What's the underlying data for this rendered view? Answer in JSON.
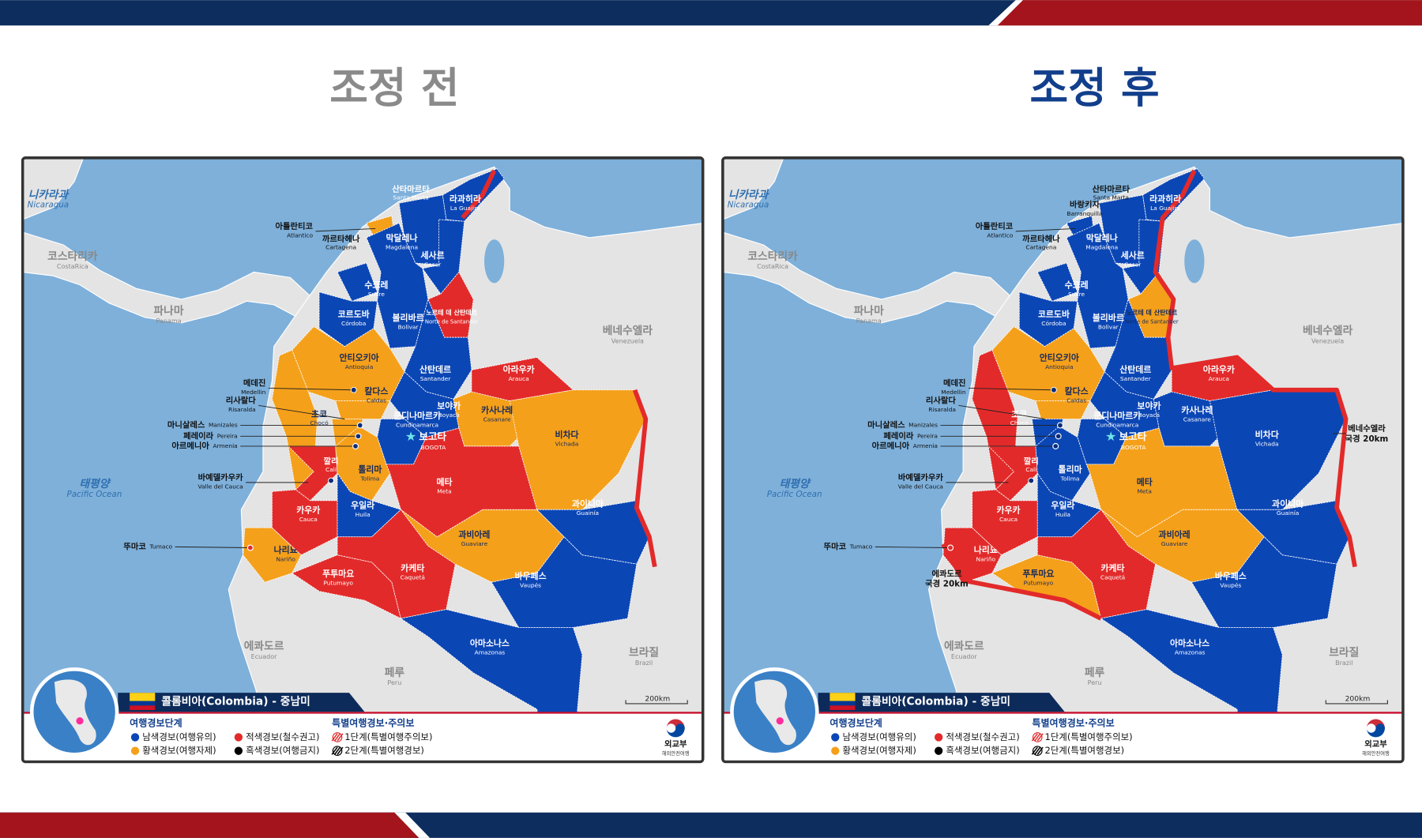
{
  "maps": [
    {
      "title": "조정 전",
      "region_colors": [
        "#0b46b5",
        "#0b46b5",
        "#f5a01a",
        "#0b46b5",
        "#0b46b5",
        "#0b46b5",
        "#0b46b5",
        "#e32a2a",
        "#0b46b5",
        "#e32a2a",
        "#f5a01a",
        "#f5a01a",
        "#f5a01a",
        "#f5a01a",
        "#0b46b5",
        "#0b46b5",
        "#f5a01a",
        "#f5a01a",
        "#e32a2a",
        "#f5a01a",
        "#e32a2a",
        "#e32a2a",
        "#0b46b5",
        "#0b46b5",
        "#f5a01a",
        "#f5a01a",
        "#e32a2a",
        "#e32a2a",
        "#0b46b5",
        "#0b46b5"
      ]
    },
    {
      "title": "조정 후",
      "region_colors": [
        "#0b46b5",
        "#0b46b5",
        "#0b46b5",
        "#0b46b5",
        "#0b46b5",
        "#0b46b5",
        "#0b46b5",
        "#f5a01a",
        "#0b46b5",
        "#e32a2a",
        "#f5a01a",
        "#e32a2a",
        "#f5a01a",
        "#0b46b5",
        "#0b46b5",
        "#0b46b5",
        "#0b46b5",
        "#0b46b5",
        "#e32a2a",
        "#0b46b5",
        "#f5a01a",
        "#e32a2a",
        "#0b46b5",
        "#0b46b5",
        "#f5a01a",
        "#e32a2a",
        "#f5a01a",
        "#e32a2a",
        "#0b46b5",
        "#0b46b5"
      ],
      "extra_labels": [
        {
          "ko": "바랑키자",
          "en": "Barranquilla"
        }
      ],
      "border_notes": [
        [
          "베네수엘라",
          "국경 20km"
        ],
        [
          "에콰도르",
          "국경 20km"
        ]
      ]
    }
  ],
  "regions": [
    {
      "ko": "라과히라",
      "en": "La Guajira"
    },
    {
      "ko": "막달레나",
      "en": "Magdalena"
    },
    {
      "ko": "아틀란티코",
      "en": "Atlantico"
    },
    {
      "ko": "세사르",
      "en": "Cesar"
    },
    {
      "ko": "볼리바르",
      "en": "Bolivar"
    },
    {
      "ko": "수크레",
      "en": "Sucre"
    },
    {
      "ko": "코르도바",
      "en": "Córdoba"
    },
    {
      "ko": "노르테 데 산탄데르",
      "en": "Norte de Santander"
    },
    {
      "ko": "산탄데르",
      "en": "Santander"
    },
    {
      "ko": "아라우카",
      "en": "Arauca"
    },
    {
      "ko": "안티오키아",
      "en": "Antioquia"
    },
    {
      "ko": "초코",
      "en": "Chocó"
    },
    {
      "ko": "칼다스",
      "en": "Caldas"
    },
    {
      "ko": "리사랄다",
      "en": "Risaralda"
    },
    {
      "ko": "보야카",
      "en": "Boyacá"
    },
    {
      "ko": "쿤디나마르카",
      "en": "Cundinamarca"
    },
    {
      "ko": "카사나레",
      "en": "Casanare"
    },
    {
      "ko": "비차다",
      "en": "Vichada"
    },
    {
      "ko": "바예델카우카",
      "en": "Valle del Cauca"
    },
    {
      "ko": "톨리마",
      "en": "Tolima"
    },
    {
      "ko": "메타",
      "en": "Meta"
    },
    {
      "ko": "카우카",
      "en": "Cauca"
    },
    {
      "ko": "우일라",
      "en": "Huila"
    },
    {
      "ko": "과이니아",
      "en": "Guainía"
    },
    {
      "ko": "과비아레",
      "en": "Guaviare"
    },
    {
      "ko": "나리뇨",
      "en": "Nariño"
    },
    {
      "ko": "푸투마요",
      "en": "Putumayo"
    },
    {
      "ko": "카케타",
      "en": "Caquetá"
    },
    {
      "ko": "바우페스",
      "en": "Vaupés"
    },
    {
      "ko": "아마소나스",
      "en": "Amazonas"
    }
  ],
  "cities": [
    {
      "ko": "산타마르타",
      "en": "Santa Marta"
    },
    {
      "ko": "까르타헤나",
      "en": "Cartagena"
    },
    {
      "ko": "메데진",
      "en": "Medellin"
    },
    {
      "ko": "마니살레스",
      "en": "Manizales"
    },
    {
      "ko": "페레이라",
      "en": "Pereira"
    },
    {
      "ko": "아르메니아",
      "en": "Armenia"
    },
    {
      "ko": "깔리",
      "en": "Cali"
    },
    {
      "ko": "보고타",
      "en": "BOGOTA"
    },
    {
      "ko": "뚜마코",
      "en": "Tumaco"
    }
  ],
  "countries": [
    {
      "ko": "니카라과",
      "en": "Nicaragua"
    },
    {
      "ko": "코스타리카",
      "en": "CostaRica"
    },
    {
      "ko": "파나마",
      "en": "Panama"
    },
    {
      "ko": "베네수엘라",
      "en": "Venezuela"
    },
    {
      "ko": "에콰도르",
      "en": "Ecuador"
    },
    {
      "ko": "페루",
      "en": "Peru"
    },
    {
      "ko": "브라질",
      "en": "Brazil"
    },
    {
      "ko": "태평양",
      "en": "Pacific Ocean"
    }
  ],
  "legend": {
    "title": "콜롬비아(Colombia) - 중남미",
    "levels_title": "여행경보단계",
    "levels": [
      {
        "label": "남색경보(여행유의)",
        "color": "#0b46b5"
      },
      {
        "label": "적색경보(철수권고)",
        "color": "#e32a2a"
      },
      {
        "label": "황색경보(여행자제)",
        "color": "#f5a01a"
      },
      {
        "label": "흑색경보(여행금지)",
        "color": "#000000"
      }
    ],
    "special_title": "특별여행경보·주의보",
    "special": [
      {
        "label": "1단계(특별여행주의보)",
        "color": "#e32a2a"
      },
      {
        "label": "2단계(특별여행경보)",
        "color": "#000000"
      }
    ],
    "scale": "200km",
    "ministry": "외교부",
    "ministry_sub": "해외안전여행"
  }
}
